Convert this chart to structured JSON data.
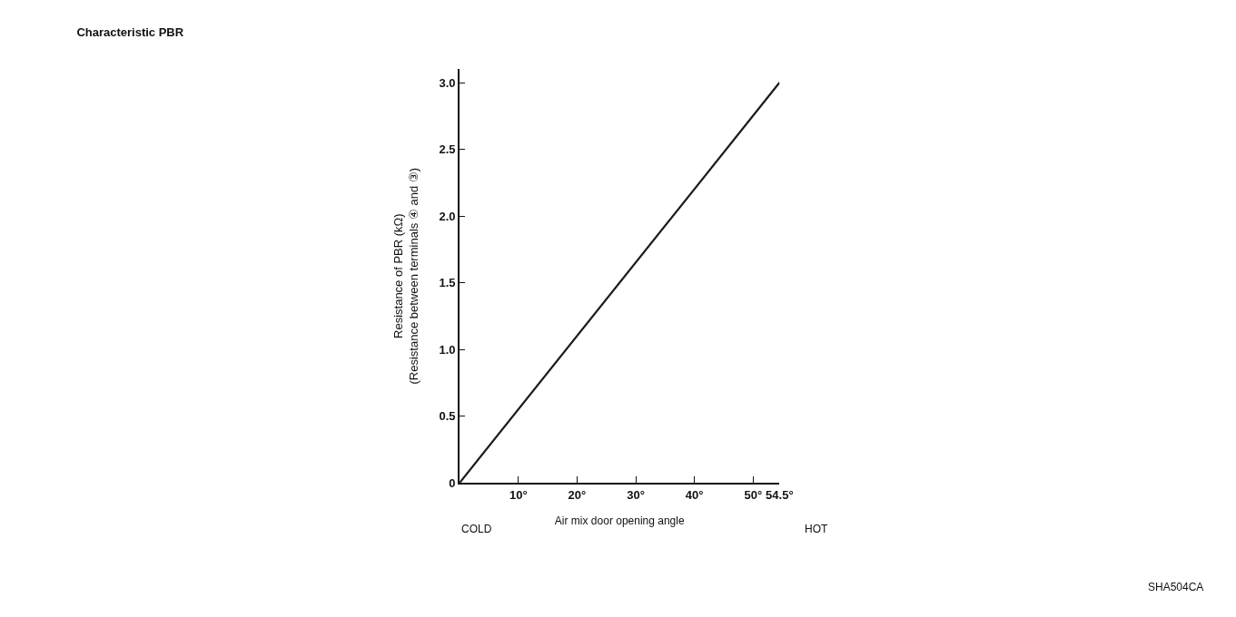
{
  "chart_data": {
    "type": "line",
    "title": "Characteristic PBR",
    "xlabel": "Air mix door opening angle",
    "ylabel": "Resistance of PBR (kΩ)\n(Resistance between terminals ④ and ③)",
    "x": [
      0,
      54.5
    ],
    "series": [
      {
        "color": "#1a1a1a",
        "values": [
          0,
          3.0
        ]
      }
    ],
    "xlim": [
      0,
      54.5
    ],
    "ylim": [
      0,
      3.1
    ],
    "xticks": [
      {
        "value": 10,
        "label": "10°"
      },
      {
        "value": 20,
        "label": "20°"
      },
      {
        "value": 30,
        "label": "30°"
      },
      {
        "value": 40,
        "label": "40°"
      },
      {
        "value": 50,
        "label": "50°"
      },
      {
        "value": 54.5,
        "label": "54.5°"
      }
    ],
    "yticks": [
      0,
      0.5,
      {
        "value": 1,
        "label": "1.0"
      },
      1.5,
      {
        "value": 2,
        "label": "2.0"
      },
      2.5,
      {
        "value": 3,
        "label": "3.0"
      }
    ],
    "annotations": [
      "COLD",
      "HOT",
      "SHA504CA"
    ],
    "marker": "none",
    "line_style": "solid"
  }
}
